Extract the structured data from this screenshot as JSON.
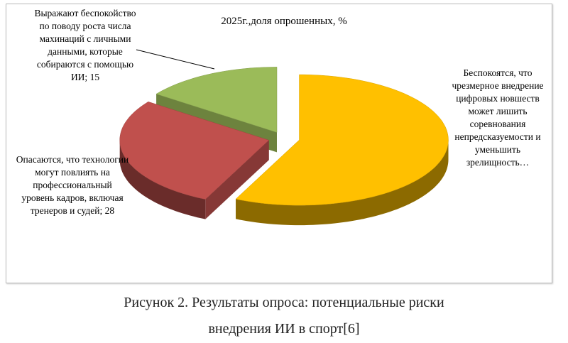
{
  "chart_data": {
    "type": "pie3d",
    "title": "2025г.,доля опрошенных, %",
    "categories": [
      "Беспокоятся, что чрезмерное внедрение цифровых новшеств может лишить соревнования непредсказуемости и уменьшить зрелищность…",
      "Опасаются, что технологии могут повлиять на профессиональный уровень кадров, включая тренеров и судей;",
      "Выражают беспокойство по поводу роста числа махинаций с личными данными, которые собираются с помощью ИИ;"
    ],
    "values": [
      57,
      28,
      15
    ],
    "value_labels": [
      null,
      "28",
      "15"
    ],
    "colors": [
      "#ffc000",
      "#c0504d",
      "#9bbb59"
    ],
    "caption": "Рисунок 2. Результаты опроса: потенциальные риски внедрения ИИ в спорт[6]"
  }
}
